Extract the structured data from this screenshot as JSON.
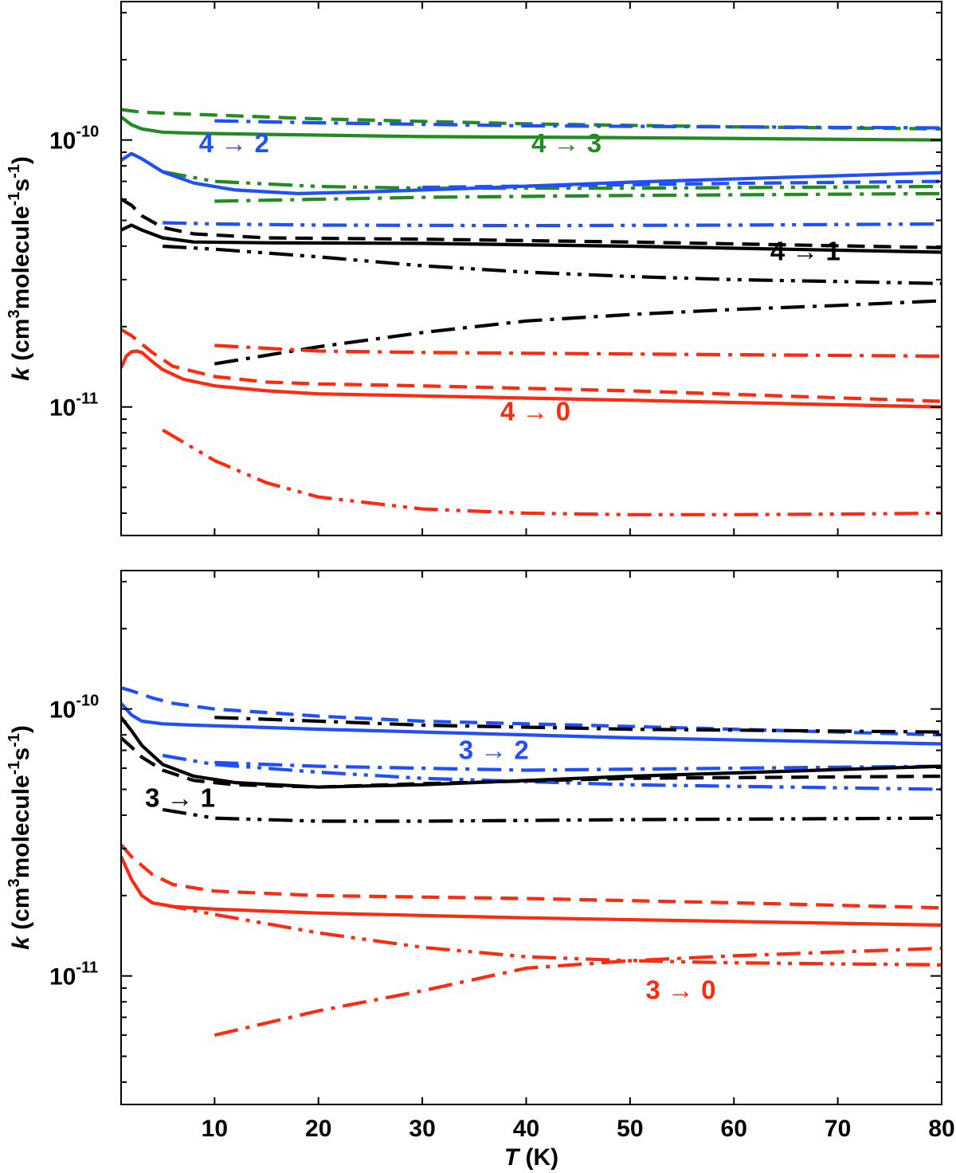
{
  "chart_data": [
    {
      "type": "line",
      "panel": "top",
      "ylabel": "k (cm3molecule-1s-1)",
      "yscale": "log",
      "xlim": [
        1,
        80
      ],
      "ylim": [
        3.3e-12,
        3.3e-10
      ],
      "xticks": [
        10,
        20,
        30,
        40,
        50,
        60,
        70,
        80
      ],
      "xtick_labels": [
        "",
        "",
        "",
        "",
        "",
        "",
        "",
        ""
      ],
      "ytick_labels": [
        {
          "value": 1e-10,
          "base": "10",
          "exp": "-10"
        },
        {
          "value": 1e-11,
          "base": "10",
          "exp": "-11"
        }
      ],
      "colors": {
        "4→3": "#228B22",
        "4→2": "#1f4fff",
        "4→1": "#000000",
        "4→0": "#ff2a10"
      },
      "annotations": [
        {
          "text": "4 → 2",
          "color": "#1f4fff",
          "x": 8.5,
          "y": 9e-11
        },
        {
          "text": "4 → 3",
          "color": "#228B22",
          "x": 40.5,
          "y": 9e-11
        },
        {
          "text": "4 → 1",
          "color": "#000000",
          "x": 63.5,
          "y": 3.55e-11
        },
        {
          "text": "4 → 0",
          "color": "#ff2a10",
          "x": 37.5,
          "y": 8.9e-12
        }
      ],
      "series": [
        {
          "transition": "4→3",
          "style": "solid",
          "color": "#228B22",
          "x": [
            1,
            2,
            3,
            5,
            8,
            15,
            30,
            50,
            80
          ],
          "y": [
            1.22e-10,
            1.14e-10,
            1.1e-10,
            1.07e-10,
            1.06e-10,
            1.05e-10,
            1.03e-10,
            1.02e-10,
            1e-10
          ]
        },
        {
          "transition": "4→3",
          "style": "dashed",
          "color": "#228B22",
          "x": [
            1,
            3,
            10,
            20,
            40,
            60,
            80
          ],
          "y": [
            1.3e-10,
            1.27e-10,
            1.24e-10,
            1.2e-10,
            1.15e-10,
            1.12e-10,
            1.1e-10
          ]
        },
        {
          "transition": "4→3",
          "style": "dash-dot",
          "color": "#228B22",
          "x": [
            10,
            20,
            30,
            50,
            80
          ],
          "y": [
            5.9e-11,
            6e-11,
            6.1e-11,
            6.2e-11,
            6.3e-11
          ]
        },
        {
          "transition": "4→3",
          "style": "dash-dot-dot",
          "color": "#228B22",
          "x": [
            5,
            10,
            20,
            30,
            50,
            80
          ],
          "y": [
            7.6e-11,
            7e-11,
            6.7e-11,
            6.6e-11,
            6.6e-11,
            6.7e-11
          ]
        },
        {
          "transition": "4→2",
          "style": "solid",
          "color": "#1f4fff",
          "x": [
            1,
            2,
            3,
            5,
            8,
            12,
            18,
            25,
            35,
            50,
            65,
            80
          ],
          "y": [
            8.4e-11,
            8.9e-11,
            8.5e-11,
            7.6e-11,
            6.9e-11,
            6.5e-11,
            6.3e-11,
            6.4e-11,
            6.6e-11,
            6.95e-11,
            7.25e-11,
            7.55e-11
          ]
        },
        {
          "transition": "4→2",
          "style": "dashed",
          "color": "#1f4fff",
          "x": [
            30,
            40,
            50,
            60,
            70,
            80
          ],
          "y": [
            6.65e-11,
            6.72e-11,
            6.8e-11,
            6.88e-11,
            6.94e-11,
            7e-11
          ]
        },
        {
          "transition": "4→2",
          "style": "dash-dot",
          "color": "#1f4fff",
          "x": [
            10,
            20,
            40,
            60,
            80
          ],
          "y": [
            1.18e-10,
            1.16e-10,
            1.13e-10,
            1.12e-10,
            1.11e-10
          ]
        },
        {
          "transition": "4→2",
          "style": "dash-dot-dot",
          "color": "#1f4fff",
          "x": [
            5,
            10,
            20,
            40,
            60,
            80
          ],
          "y": [
            4.9e-11,
            4.85e-11,
            4.8e-11,
            4.78e-11,
            4.8e-11,
            4.85e-11
          ]
        },
        {
          "transition": "4→1",
          "style": "solid",
          "color": "#000000",
          "x": [
            1,
            2,
            3,
            5,
            8,
            15,
            30,
            50,
            80
          ],
          "y": [
            4.6e-11,
            4.8e-11,
            4.6e-11,
            4.3e-11,
            4.15e-11,
            4.12e-11,
            4.1e-11,
            4e-11,
            3.8e-11
          ]
        },
        {
          "transition": "4→1",
          "style": "dashed",
          "color": "#000000",
          "x": [
            1,
            2,
            3,
            5,
            8,
            15,
            30,
            50,
            80
          ],
          "y": [
            6e-11,
            5.7e-11,
            5.2e-11,
            4.7e-11,
            4.45e-11,
            4.3e-11,
            4.25e-11,
            4.15e-11,
            3.95e-11
          ]
        },
        {
          "transition": "4→1",
          "style": "dash-dot",
          "color": "#000000",
          "x": [
            10,
            20,
            30,
            40,
            50,
            60,
            70,
            80
          ],
          "y": [
            1.45e-11,
            1.68e-11,
            1.9e-11,
            2.1e-11,
            2.22e-11,
            2.32e-11,
            2.4e-11,
            2.5e-11
          ]
        },
        {
          "transition": "4→1",
          "style": "dash-dot-dot",
          "color": "#000000",
          "x": [
            5,
            10,
            20,
            30,
            40,
            50,
            60,
            70,
            80
          ],
          "y": [
            4e-11,
            3.9e-11,
            3.65e-11,
            3.38e-11,
            3.2e-11,
            3.08e-11,
            3e-11,
            2.95e-11,
            2.9e-11
          ]
        },
        {
          "transition": "4→0",
          "style": "solid",
          "color": "#ff2a10",
          "x": [
            1,
            1.5,
            2,
            2.5,
            3,
            4,
            5,
            7,
            10,
            15,
            20,
            30,
            50,
            80
          ],
          "y": [
            1.4e-11,
            1.55e-11,
            1.61e-11,
            1.62e-11,
            1.6e-11,
            1.48e-11,
            1.38e-11,
            1.27e-11,
            1.2e-11,
            1.15e-11,
            1.12e-11,
            1.1e-11,
            1.06e-11,
            1e-11
          ]
        },
        {
          "transition": "4→0",
          "style": "dashed",
          "color": "#ff2a10",
          "x": [
            1,
            2,
            4,
            6,
            10,
            15,
            20,
            30,
            50,
            80
          ],
          "y": [
            1.95e-11,
            1.85e-11,
            1.6e-11,
            1.42e-11,
            1.3e-11,
            1.24e-11,
            1.22e-11,
            1.2e-11,
            1.15e-11,
            1.05e-11
          ]
        },
        {
          "transition": "4→0",
          "style": "dash-dot",
          "color": "#ff2a10",
          "x": [
            10,
            20,
            30,
            50,
            80
          ],
          "y": [
            1.7e-11,
            1.62e-11,
            1.6e-11,
            1.58e-11,
            1.55e-11
          ]
        },
        {
          "transition": "4→0",
          "style": "dash-dot-dot",
          "color": "#ff2a10",
          "x": [
            5,
            10,
            15,
            20,
            30,
            40,
            50,
            60,
            70,
            80
          ],
          "y": [
            8.2e-12,
            6.3e-12,
            5.2e-12,
            4.6e-12,
            4.15e-12,
            4e-12,
            3.95e-12,
            3.95e-12,
            3.97e-12,
            4e-12
          ]
        }
      ]
    },
    {
      "type": "line",
      "panel": "bottom",
      "xlabel": "T (K)",
      "ylabel": "k (cm3molecule-1s-1)",
      "yscale": "log",
      "xlim": [
        1,
        80
      ],
      "ylim": [
        3.3e-12,
        3.3e-10
      ],
      "xticks": [
        10,
        20,
        30,
        40,
        50,
        60,
        70,
        80
      ],
      "xtick_labels": [
        "10",
        "20",
        "30",
        "40",
        "50",
        "60",
        "70",
        "80"
      ],
      "ytick_labels": [
        {
          "value": 1e-10,
          "base": "10",
          "exp": "-10"
        },
        {
          "value": 1e-11,
          "base": "10",
          "exp": "-11"
        }
      ],
      "colors": {
        "3→2": "#1f4fff",
        "3→1": "#000000",
        "3→0": "#ff2a10"
      },
      "annotations": [
        {
          "text": "3 → 2",
          "color": "#1f4fff",
          "x": 33.5,
          "y": 6.5e-11
        },
        {
          "text": "3 → 1",
          "color": "#000000",
          "x": 3.3,
          "y": 4.3e-11
        },
        {
          "text": "3 → 0",
          "color": "#ff2a10",
          "x": 51.5,
          "y": 8.2e-12
        }
      ],
      "series": [
        {
          "transition": "3→2",
          "style": "solid",
          "color": "#1f4fff",
          "x": [
            1,
            2,
            3,
            5,
            8,
            12,
            20,
            30,
            50,
            80
          ],
          "y": [
            1.05e-10,
            9.5e-11,
            9e-11,
            8.8e-11,
            8.7e-11,
            8.6e-11,
            8.4e-11,
            8.2e-11,
            7.8e-11,
            7.4e-11
          ]
        },
        {
          "transition": "3→2",
          "style": "dashed",
          "color": "#1f4fff",
          "x": [
            1,
            2,
            4,
            6,
            10,
            20,
            30,
            50,
            80
          ],
          "y": [
            1.2e-10,
            1.17e-10,
            1.1e-10,
            1.05e-10,
            1e-10,
            9.4e-11,
            9e-11,
            8.6e-11,
            8e-11
          ]
        },
        {
          "transition": "3→2",
          "style": "dash-dot",
          "color": "#1f4fff",
          "x": [
            10,
            20,
            40,
            60,
            80
          ],
          "y": [
            6.3e-11,
            6.1e-11,
            5.9e-11,
            6e-11,
            6.1e-11
          ]
        },
        {
          "transition": "3→2",
          "style": "dash-dot-dot",
          "color": "#1f4fff",
          "x": [
            5,
            10,
            20,
            30,
            50,
            80
          ],
          "y": [
            6.7e-11,
            6.2e-11,
            5.8e-11,
            5.5e-11,
            5.2e-11,
            5e-11
          ]
        },
        {
          "transition": "3→1",
          "style": "solid",
          "color": "#000000",
          "x": [
            1,
            2,
            3,
            5,
            8,
            12,
            20,
            30,
            50,
            80
          ],
          "y": [
            9.3e-11,
            8.3e-11,
            7.3e-11,
            6.2e-11,
            5.6e-11,
            5.3e-11,
            5.1e-11,
            5.2e-11,
            5.6e-11,
            6.1e-11
          ]
        },
        {
          "transition": "3→1",
          "style": "dashed",
          "color": "#000000",
          "x": [
            1,
            2,
            3,
            5,
            8,
            12,
            20,
            30,
            50,
            80
          ],
          "y": [
            7.8e-11,
            7.2e-11,
            6.6e-11,
            5.9e-11,
            5.4e-11,
            5.2e-11,
            5.1e-11,
            5.25e-11,
            5.5e-11,
            5.6e-11
          ]
        },
        {
          "transition": "3→1",
          "style": "dash-dot",
          "color": "#000000",
          "x": [
            10,
            20,
            30,
            50,
            80
          ],
          "y": [
            9.3e-11,
            9e-11,
            8.7e-11,
            8.4e-11,
            8.2e-11
          ]
        },
        {
          "transition": "3→1",
          "style": "dash-dot-dot",
          "color": "#000000",
          "x": [
            5,
            10,
            20,
            30,
            50,
            80
          ],
          "y": [
            4.2e-11,
            3.9e-11,
            3.8e-11,
            3.8e-11,
            3.85e-11,
            3.9e-11
          ]
        },
        {
          "transition": "3→0",
          "style": "solid",
          "color": "#ff2a10",
          "x": [
            1,
            2,
            3,
            4,
            6,
            10,
            20,
            40,
            60,
            80
          ],
          "y": [
            2.8e-11,
            2.3e-11,
            2e-11,
            1.88e-11,
            1.82e-11,
            1.78e-11,
            1.72e-11,
            1.65e-11,
            1.6e-11,
            1.55e-11
          ]
        },
        {
          "transition": "3→0",
          "style": "dashed",
          "color": "#ff2a10",
          "x": [
            1,
            2,
            4,
            6,
            10,
            20,
            40,
            60,
            80
          ],
          "y": [
            3.1e-11,
            2.8e-11,
            2.4e-11,
            2.2e-11,
            2.08e-11,
            2e-11,
            1.95e-11,
            1.88e-11,
            1.8e-11
          ]
        },
        {
          "transition": "3→0",
          "style": "dash-dot",
          "color": "#ff2a10",
          "x": [
            10,
            20,
            30,
            40,
            50,
            60,
            70,
            80
          ],
          "y": [
            6e-12,
            7.4e-12,
            8.8e-12,
            1.07e-11,
            1.14e-11,
            1.19e-11,
            1.23e-11,
            1.27e-11
          ]
        },
        {
          "transition": "3→0",
          "style": "dash-dot-dot",
          "color": "#ff2a10",
          "x": [
            5,
            10,
            20,
            30,
            40,
            50,
            60,
            70,
            80
          ],
          "y": [
            1.85e-11,
            1.7e-11,
            1.45e-11,
            1.28e-11,
            1.18e-11,
            1.14e-11,
            1.12e-11,
            1.11e-11,
            1.1e-11
          ]
        }
      ]
    }
  ]
}
